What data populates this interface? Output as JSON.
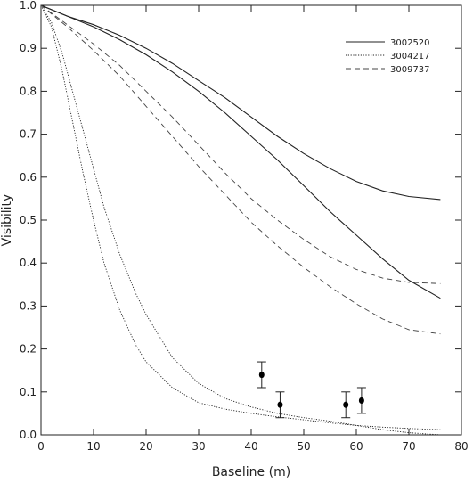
{
  "chart_data": {
    "type": "line",
    "xlabel": "Baseline (m)",
    "ylabel": "Visibility",
    "xlim": [
      0,
      80
    ],
    "ylim": [
      0,
      1.0
    ],
    "x_ticks": [
      "0",
      "10",
      "20",
      "30",
      "40",
      "50",
      "60",
      "70",
      "80"
    ],
    "y_ticks": [
      "0.0",
      "0.1",
      "0.2",
      "0.3",
      "0.4",
      "0.5",
      "0.6",
      "0.7",
      "0.8",
      "0.9",
      "1.0"
    ],
    "grid": false,
    "legend_position": "top-right",
    "legend": [
      {
        "label": "3002520",
        "style": "solid"
      },
      {
        "label": "3004217",
        "style": "dotted"
      },
      {
        "label": "3009737",
        "style": "dashed"
      }
    ],
    "series": [
      {
        "name": "3002520",
        "style": "solid",
        "x": [
          0,
          5,
          10,
          15,
          20,
          25,
          30,
          35,
          40,
          45,
          50,
          55,
          60,
          65,
          70,
          76
        ],
        "y": [
          1.0,
          0.975,
          0.955,
          0.93,
          0.9,
          0.865,
          0.825,
          0.785,
          0.74,
          0.695,
          0.655,
          0.62,
          0.59,
          0.568,
          0.555,
          0.548
        ]
      },
      {
        "name": "3002520",
        "style": "solid",
        "x": [
          0,
          5,
          10,
          15,
          20,
          25,
          30,
          35,
          40,
          45,
          50,
          55,
          60,
          65,
          70,
          76
        ],
        "y": [
          1.0,
          0.975,
          0.95,
          0.92,
          0.885,
          0.845,
          0.8,
          0.75,
          0.695,
          0.64,
          0.58,
          0.52,
          0.465,
          0.41,
          0.36,
          0.318
        ]
      },
      {
        "name": "3004217",
        "style": "dotted",
        "x": [
          0,
          2,
          4,
          6,
          8,
          10,
          12,
          15,
          18,
          20,
          25,
          30,
          35,
          40,
          45,
          50,
          55,
          60,
          65,
          70,
          76
        ],
        "y": [
          1.0,
          0.95,
          0.85,
          0.73,
          0.61,
          0.5,
          0.4,
          0.29,
          0.21,
          0.17,
          0.11,
          0.075,
          0.06,
          0.05,
          0.042,
          0.035,
          0.028,
          0.022,
          0.018,
          0.015,
          0.012
        ]
      },
      {
        "name": "3004217",
        "style": "dotted",
        "x": [
          0,
          2,
          4,
          6,
          8,
          10,
          12,
          15,
          18,
          20,
          25,
          30,
          35,
          40,
          45,
          50,
          55,
          60,
          65,
          70,
          76
        ],
        "y": [
          1.0,
          0.96,
          0.89,
          0.8,
          0.71,
          0.62,
          0.53,
          0.42,
          0.33,
          0.28,
          0.18,
          0.12,
          0.085,
          0.065,
          0.05,
          0.04,
          0.032,
          0.022,
          0.012,
          0.005,
          0.0
        ]
      },
      {
        "name": "3009737",
        "style": "dashed",
        "x": [
          0,
          5,
          10,
          15,
          20,
          25,
          30,
          35,
          40,
          45,
          50,
          55,
          60,
          65,
          70,
          76
        ],
        "y": [
          1.0,
          0.955,
          0.91,
          0.86,
          0.8,
          0.74,
          0.675,
          0.61,
          0.55,
          0.5,
          0.455,
          0.415,
          0.385,
          0.365,
          0.355,
          0.352
        ]
      },
      {
        "name": "3009737",
        "style": "dashed",
        "x": [
          0,
          5,
          10,
          15,
          20,
          25,
          30,
          35,
          40,
          45,
          50,
          55,
          60,
          65,
          70,
          76
        ],
        "y": [
          1.0,
          0.95,
          0.895,
          0.835,
          0.765,
          0.695,
          0.625,
          0.56,
          0.495,
          0.44,
          0.39,
          0.345,
          0.305,
          0.27,
          0.245,
          0.235
        ]
      }
    ],
    "measurements": {
      "x": [
        42,
        45.5,
        58,
        61
      ],
      "y": [
        0.14,
        0.07,
        0.07,
        0.08
      ],
      "err": [
        0.03,
        0.03,
        0.03,
        0.03
      ]
    },
    "colors": {
      "axis": "#222222",
      "line": "#222222",
      "dashed": "#444444",
      "point": "#000000"
    }
  }
}
